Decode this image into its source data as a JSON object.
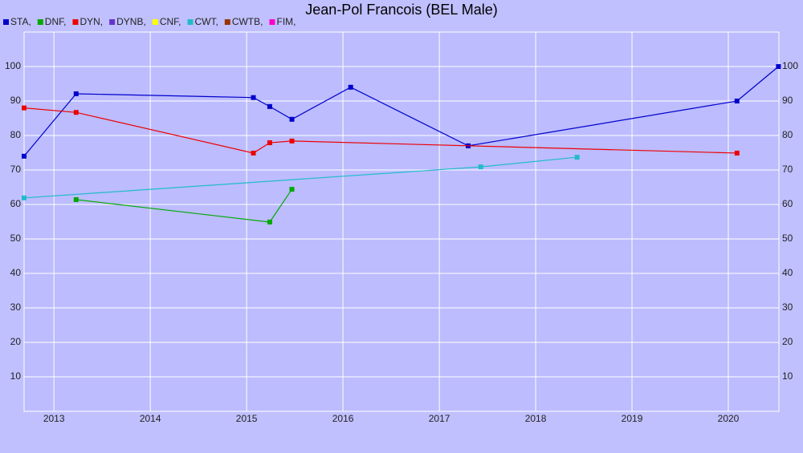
{
  "chart_data": {
    "type": "line",
    "title": "Jean-Pol Francois (BEL Male)",
    "xlim": [
      2012.69,
      2020.525
    ],
    "xticks": [
      2013,
      2014,
      2015,
      2016,
      2017,
      2018,
      2019,
      2020
    ],
    "ylim": [
      0,
      110
    ],
    "yticks": [
      10,
      20,
      30,
      40,
      50,
      60,
      70,
      80,
      90,
      100
    ],
    "grid": true,
    "series": [
      {
        "name": "STA,",
        "color": "#0000cc",
        "x": [
          2012.69,
          2013.23,
          2015.07,
          2015.24,
          2015.47,
          2016.08,
          2017.3,
          2020.09,
          2020.52
        ],
        "values": [
          74,
          92.1,
          91,
          88.4,
          84.7,
          94,
          77,
          90,
          100
        ]
      },
      {
        "name": "DNF,",
        "color": "#00aa00",
        "x": [
          2013.23,
          2015.24,
          2015.47
        ],
        "values": [
          61.4,
          54.9,
          64.4
        ]
      },
      {
        "name": "DYN,",
        "color": "#ee0000",
        "x": [
          2012.69,
          2013.23,
          2015.07,
          2015.24,
          2015.47,
          2020.09
        ],
        "values": [
          88,
          86.7,
          74.9,
          77.9,
          78.4,
          74.9
        ]
      },
      {
        "name": "DYNB,",
        "color": "#6633cc",
        "x": [],
        "values": []
      },
      {
        "name": "CNF,",
        "color": "#ffff00",
        "x": [],
        "values": []
      },
      {
        "name": "CWT,",
        "color": "#22bbcc",
        "x": [
          2012.69,
          2017.43,
          2018.43
        ],
        "values": [
          61.9,
          70.9,
          73.7
        ]
      },
      {
        "name": "CWTB,",
        "color": "#993300",
        "x": [],
        "values": []
      },
      {
        "name": "FIM,",
        "color": "#ff00cc",
        "x": [],
        "values": []
      }
    ]
  }
}
